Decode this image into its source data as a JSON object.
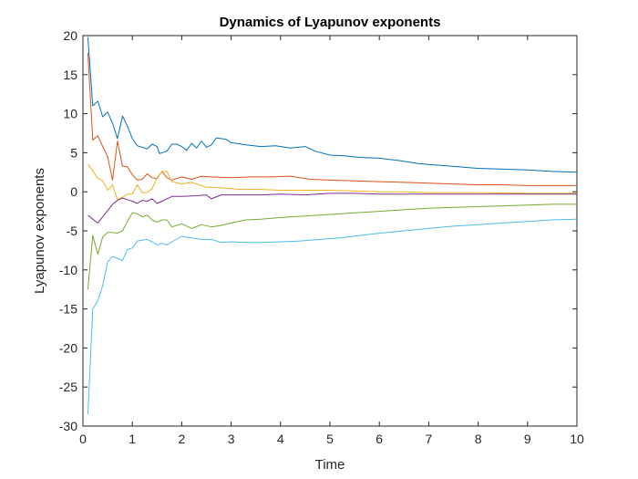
{
  "chart_data": {
    "type": "line",
    "title": "Dynamics of Lyapunov exponents",
    "xlabel": "Time",
    "ylabel": "Lyapunov exponents",
    "xlim": [
      0,
      10
    ],
    "ylim": [
      -30,
      20
    ],
    "xticks": [
      0,
      1,
      2,
      3,
      4,
      5,
      6,
      7,
      8,
      9,
      10
    ],
    "yticks": [
      -30,
      -25,
      -20,
      -15,
      -10,
      -5,
      0,
      5,
      10,
      15,
      20
    ],
    "grid": false,
    "legend": "none",
    "series": [
      {
        "color": "#0072BD",
        "points": [
          [
            0.1,
            19.8
          ],
          [
            0.2,
            11
          ],
          [
            0.3,
            11.6
          ],
          [
            0.4,
            9.6
          ],
          [
            0.5,
            10.2
          ],
          [
            0.6,
            8.8
          ],
          [
            0.7,
            6.8
          ],
          [
            0.8,
            9.7
          ],
          [
            0.9,
            8.4
          ],
          [
            1.0,
            6.8
          ],
          [
            1.1,
            5.9
          ],
          [
            1.3,
            5.5
          ],
          [
            1.4,
            6.1
          ],
          [
            1.5,
            5.8
          ],
          [
            1.55,
            4.9
          ],
          [
            1.7,
            5.2
          ],
          [
            1.8,
            6.1
          ],
          [
            1.9,
            6.1
          ],
          [
            2.0,
            5.8
          ],
          [
            2.1,
            5.3
          ],
          [
            2.2,
            6.2
          ],
          [
            2.3,
            5.6
          ],
          [
            2.4,
            6.5
          ],
          [
            2.5,
            5.7
          ],
          [
            2.6,
            6.0
          ],
          [
            2.7,
            6.9
          ],
          [
            2.9,
            6.7
          ],
          [
            3.0,
            6.3
          ],
          [
            3.3,
            6.0
          ],
          [
            3.6,
            5.8
          ],
          [
            3.9,
            5.9
          ],
          [
            4.2,
            5.6
          ],
          [
            4.5,
            5.8
          ],
          [
            4.7,
            5.2
          ],
          [
            5.0,
            4.7
          ],
          [
            5.3,
            4.6
          ],
          [
            5.6,
            4.4
          ],
          [
            6.0,
            4.3
          ],
          [
            6.4,
            4.0
          ],
          [
            6.8,
            3.6
          ],
          [
            7.2,
            3.4
          ],
          [
            7.6,
            3.2
          ],
          [
            8.0,
            3.0
          ],
          [
            8.5,
            2.9
          ],
          [
            9.0,
            2.8
          ],
          [
            9.5,
            2.6
          ],
          [
            10.0,
            2.5
          ]
        ]
      },
      {
        "color": "#D95319",
        "points": [
          [
            0.1,
            17.8
          ],
          [
            0.2,
            6.6
          ],
          [
            0.3,
            7.2
          ],
          [
            0.4,
            5.8
          ],
          [
            0.5,
            4.5
          ],
          [
            0.6,
            1.5
          ],
          [
            0.7,
            6.5
          ],
          [
            0.8,
            3.3
          ],
          [
            0.9,
            3.2
          ],
          [
            1.0,
            2.2
          ],
          [
            1.1,
            1.5
          ],
          [
            1.2,
            1.6
          ],
          [
            1.3,
            2.3
          ],
          [
            1.4,
            1.8
          ],
          [
            1.5,
            1.7
          ],
          [
            1.6,
            2.6
          ],
          [
            1.7,
            1.8
          ],
          [
            1.8,
            1.5
          ],
          [
            2.0,
            1.9
          ],
          [
            2.2,
            1.6
          ],
          [
            2.4,
            2.0
          ],
          [
            2.6,
            1.9
          ],
          [
            3.0,
            1.8
          ],
          [
            3.4,
            1.9
          ],
          [
            3.8,
            1.9
          ],
          [
            4.2,
            2.0
          ],
          [
            4.6,
            1.6
          ],
          [
            5.0,
            1.5
          ],
          [
            5.5,
            1.4
          ],
          [
            6.0,
            1.3
          ],
          [
            6.5,
            1.2
          ],
          [
            7.0,
            1.1
          ],
          [
            7.5,
            1.0
          ],
          [
            8.0,
            0.9
          ],
          [
            8.5,
            0.9
          ],
          [
            9.0,
            0.8
          ],
          [
            9.5,
            0.8
          ],
          [
            10.0,
            0.8
          ]
        ]
      },
      {
        "color": "#EDB120",
        "points": [
          [
            0.1,
            3.5
          ],
          [
            0.2,
            2.7
          ],
          [
            0.3,
            1.7
          ],
          [
            0.4,
            1.4
          ],
          [
            0.5,
            0.2
          ],
          [
            0.6,
            0.9
          ],
          [
            0.7,
            -1.0
          ],
          [
            0.8,
            -0.7
          ],
          [
            0.9,
            -0.3
          ],
          [
            1.0,
            -0.3
          ],
          [
            1.1,
            0.9
          ],
          [
            1.2,
            -0.1
          ],
          [
            1.3,
            -0.1
          ],
          [
            1.4,
            0.4
          ],
          [
            1.5,
            1.8
          ],
          [
            1.6,
            2.6
          ],
          [
            1.7,
            2.6
          ],
          [
            1.8,
            1.3
          ],
          [
            2.0,
            1.0
          ],
          [
            2.2,
            1.2
          ],
          [
            2.5,
            0.6
          ],
          [
            2.8,
            0.5
          ],
          [
            3.2,
            0.3
          ],
          [
            3.6,
            0.3
          ],
          [
            4.0,
            0.2
          ],
          [
            4.5,
            0.2
          ],
          [
            5.0,
            0.2
          ],
          [
            5.5,
            0.1
          ],
          [
            6.0,
            0.0
          ],
          [
            6.5,
            0.0
          ],
          [
            7.0,
            -0.1
          ],
          [
            8.0,
            -0.1
          ],
          [
            9.0,
            -0.2
          ],
          [
            10.0,
            -0.2
          ]
        ]
      },
      {
        "color": "#7E2F8E",
        "points": [
          [
            0.1,
            -3.0
          ],
          [
            0.2,
            -3.5
          ],
          [
            0.3,
            -4.0
          ],
          [
            0.4,
            -3.2
          ],
          [
            0.5,
            -2.4
          ],
          [
            0.6,
            -1.6
          ],
          [
            0.7,
            -1.1
          ],
          [
            0.8,
            -0.8
          ],
          [
            0.9,
            -1.0
          ],
          [
            1.0,
            -1.2
          ],
          [
            1.1,
            -1.5
          ],
          [
            1.2,
            -1.1
          ],
          [
            1.3,
            -1.2
          ],
          [
            1.4,
            -0.9
          ],
          [
            1.5,
            -1.5
          ],
          [
            1.6,
            -1.2
          ],
          [
            1.7,
            -0.9
          ],
          [
            1.8,
            -0.6
          ],
          [
            2.0,
            -0.6
          ],
          [
            2.3,
            -0.5
          ],
          [
            2.5,
            -0.4
          ],
          [
            2.6,
            -0.9
          ],
          [
            2.8,
            -0.4
          ],
          [
            3.2,
            -0.4
          ],
          [
            3.6,
            -0.4
          ],
          [
            4.0,
            -0.3
          ],
          [
            4.5,
            -0.4
          ],
          [
            5.0,
            -0.2
          ],
          [
            5.5,
            -0.2
          ],
          [
            6.0,
            -0.3
          ],
          [
            6.5,
            -0.3
          ],
          [
            7.0,
            -0.3
          ],
          [
            8.0,
            -0.3
          ],
          [
            9.0,
            -0.3
          ],
          [
            10.0,
            -0.3
          ]
        ]
      },
      {
        "color": "#77AC30",
        "points": [
          [
            0.1,
            -12.5
          ],
          [
            0.2,
            -5.6
          ],
          [
            0.3,
            -8.0
          ],
          [
            0.4,
            -5.8
          ],
          [
            0.5,
            -5.2
          ],
          [
            0.6,
            -5.2
          ],
          [
            0.7,
            -5.3
          ],
          [
            0.8,
            -5.0
          ],
          [
            0.9,
            -3.8
          ],
          [
            1.0,
            -2.7
          ],
          [
            1.1,
            -2.8
          ],
          [
            1.2,
            -3.2
          ],
          [
            1.3,
            -3.0
          ],
          [
            1.4,
            -3.6
          ],
          [
            1.5,
            -3.9
          ],
          [
            1.6,
            -3.6
          ],
          [
            1.7,
            -3.6
          ],
          [
            1.8,
            -4.5
          ],
          [
            2.0,
            -4.1
          ],
          [
            2.2,
            -4.7
          ],
          [
            2.4,
            -4.2
          ],
          [
            2.6,
            -4.5
          ],
          [
            2.8,
            -4.3
          ],
          [
            3.0,
            -4.0
          ],
          [
            3.3,
            -3.6
          ],
          [
            3.6,
            -3.5
          ],
          [
            4.0,
            -3.3
          ],
          [
            4.5,
            -3.1
          ],
          [
            5.0,
            -2.9
          ],
          [
            5.5,
            -2.7
          ],
          [
            6.0,
            -2.5
          ],
          [
            6.5,
            -2.3
          ],
          [
            7.0,
            -2.1
          ],
          [
            7.5,
            -2.0
          ],
          [
            8.0,
            -1.9
          ],
          [
            8.5,
            -1.8
          ],
          [
            9.0,
            -1.7
          ],
          [
            9.5,
            -1.6
          ],
          [
            10.0,
            -1.6
          ]
        ]
      },
      {
        "color": "#4DBEEE",
        "points": [
          [
            0.1,
            -28.5
          ],
          [
            0.2,
            -15
          ],
          [
            0.3,
            -14
          ],
          [
            0.4,
            -12
          ],
          [
            0.5,
            -9
          ],
          [
            0.6,
            -8.3
          ],
          [
            0.7,
            -8.5
          ],
          [
            0.8,
            -8.8
          ],
          [
            0.9,
            -7.4
          ],
          [
            1.0,
            -7.2
          ],
          [
            1.1,
            -6.3
          ],
          [
            1.2,
            -6.2
          ],
          [
            1.3,
            -6.1
          ],
          [
            1.4,
            -6.4
          ],
          [
            1.5,
            -6.8
          ],
          [
            1.6,
            -6.6
          ],
          [
            1.7,
            -6.8
          ],
          [
            1.8,
            -6.4
          ],
          [
            2.0,
            -5.7
          ],
          [
            2.2,
            -5.9
          ],
          [
            2.4,
            -6.1
          ],
          [
            2.6,
            -6.1
          ],
          [
            2.8,
            -6.5
          ],
          [
            3.0,
            -6.4
          ],
          [
            3.3,
            -6.5
          ],
          [
            3.6,
            -6.5
          ],
          [
            4.0,
            -6.4
          ],
          [
            4.4,
            -6.3
          ],
          [
            4.8,
            -6.1
          ],
          [
            5.2,
            -5.9
          ],
          [
            5.6,
            -5.6
          ],
          [
            6.0,
            -5.3
          ],
          [
            6.5,
            -5.0
          ],
          [
            7.0,
            -4.7
          ],
          [
            7.5,
            -4.4
          ],
          [
            8.0,
            -4.2
          ],
          [
            8.5,
            -4.0
          ],
          [
            9.0,
            -3.8
          ],
          [
            9.5,
            -3.6
          ],
          [
            10.0,
            -3.5
          ]
        ]
      }
    ]
  }
}
